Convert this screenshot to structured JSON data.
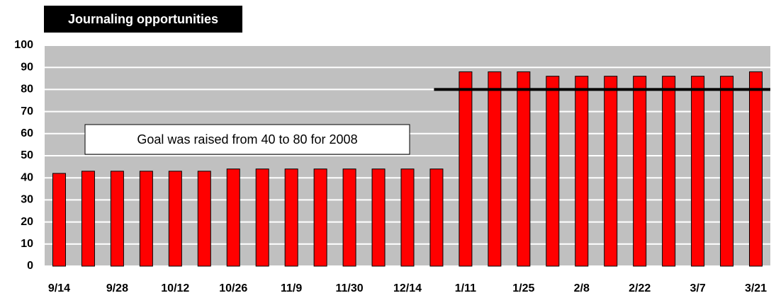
{
  "chart_data": {
    "type": "bar",
    "title": "Journaling opportunities",
    "annotation": "Goal was raised from 40 to 80 for 2008",
    "categories": [
      "9/14",
      null,
      "9/28",
      null,
      "10/12",
      null,
      "10/26",
      null,
      "11/9",
      null,
      "11/30",
      null,
      "12/14",
      null,
      "1/11",
      null,
      "1/25",
      null,
      "2/8",
      null,
      "2/22",
      null,
      "3/7",
      null,
      "3/21"
    ],
    "values": [
      42,
      43,
      43,
      43,
      43,
      43,
      44,
      44,
      44,
      44,
      44,
      44,
      44,
      44,
      88,
      88,
      88,
      86,
      86,
      86,
      86,
      86,
      86,
      86,
      88
    ],
    "color": "#ff0000",
    "goal": 80,
    "ylim": [
      0,
      100
    ],
    "yticks": [
      0,
      10,
      20,
      30,
      40,
      50,
      60,
      70,
      80,
      90,
      100
    ],
    "grid": true
  }
}
